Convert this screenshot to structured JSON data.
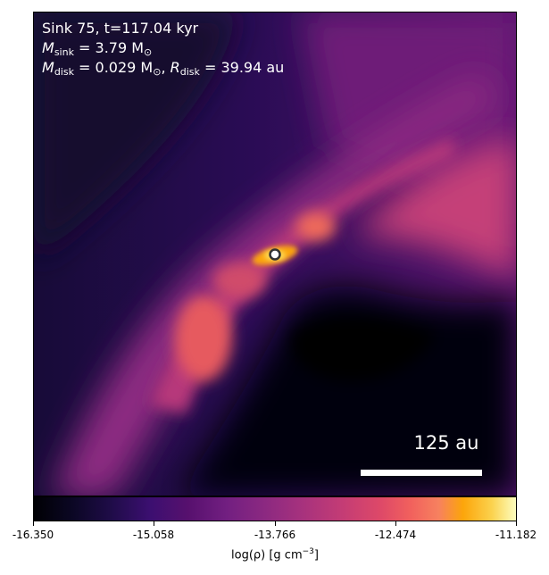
{
  "annotation": {
    "line1": "Sink 75, t=117.04 kyr",
    "msink_symbol": "M",
    "msink_sub": "sink",
    "msink_value": " = 3.79 M",
    "msink_unit_sub": "⊙",
    "mdisk_symbol": "M",
    "mdisk_sub": "disk",
    "mdisk_value": " = 0.029 M",
    "mdisk_unit_sub": "⊙",
    "rdisk_symbol": "R",
    "rdisk_sub": "disk",
    "rdisk_value": " = 39.94 au",
    "separator": ", "
  },
  "scale_bar": {
    "label": "125 au"
  },
  "colorbar": {
    "ticks": [
      "-16.350",
      "-15.058",
      "-13.766",
      "-12.474",
      "-11.182"
    ],
    "label_main": "log(ρ) [g cm",
    "label_exp": "−3",
    "label_end": "]",
    "colormap": "inferno"
  },
  "colors": {
    "sink_marker_fill": "#ffffff",
    "sink_marker_edge": "#333333"
  }
}
